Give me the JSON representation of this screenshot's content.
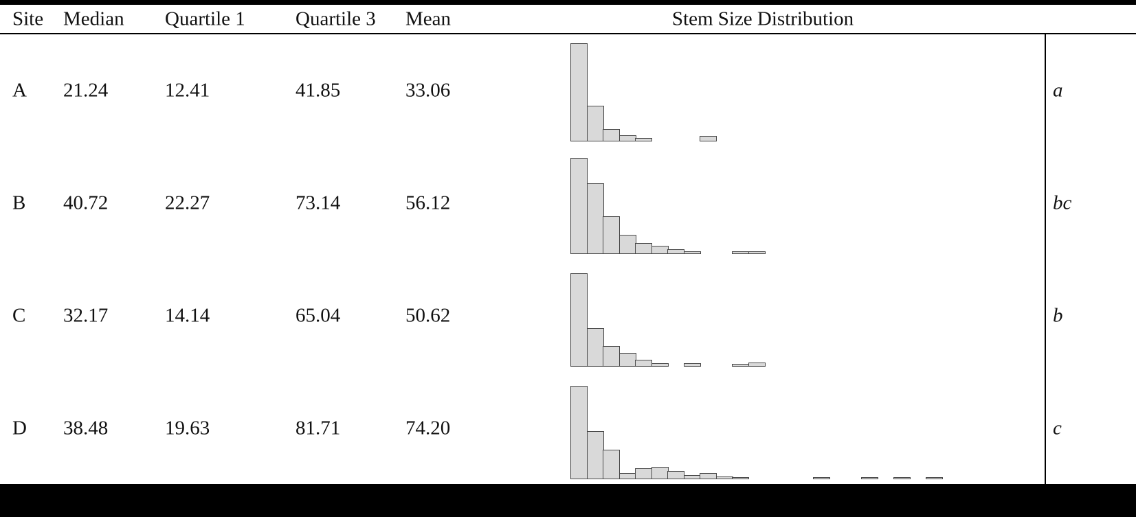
{
  "header": {
    "site": "Site",
    "median": "Median",
    "q1": "Quartile 1",
    "q3": "Quartile 3",
    "mean": "Mean",
    "dist": "Stem Size Distribution"
  },
  "rows": [
    {
      "site": "A",
      "median": "21.24",
      "q1": "12.41",
      "q3": "41.85",
      "mean": "33.06",
      "sig": "a",
      "hist": [
        143,
        52,
        18,
        9,
        5,
        0,
        0,
        0,
        8
      ]
    },
    {
      "site": "B",
      "median": "40.72",
      "q1": "22.27",
      "q3": "73.14",
      "mean": "56.12",
      "sig": "bc",
      "hist": [
        140,
        103,
        55,
        28,
        16,
        12,
        7,
        4,
        0,
        0,
        4,
        4
      ]
    },
    {
      "site": "C",
      "median": "32.17",
      "q1": "14.14",
      "q3": "65.04",
      "mean": "50.62",
      "sig": "b",
      "hist": [
        136,
        56,
        30,
        20,
        10,
        5,
        0,
        5,
        0,
        0,
        4,
        6
      ]
    },
    {
      "site": "D",
      "median": "38.48",
      "q1": "19.63",
      "q3": "81.71",
      "mean": "74.20",
      "sig": "c",
      "hist": [
        136,
        70,
        43,
        9,
        16,
        18,
        12,
        6,
        9,
        4,
        3,
        0,
        0,
        0,
        0,
        3,
        0,
        0,
        3,
        0,
        3,
        0,
        3
      ]
    }
  ],
  "colors": {
    "bar_fill": "#d9d9d9",
    "bar_border": "#474747",
    "rule": "#000000",
    "background": "#ffffff"
  },
  "chart_data": {
    "type": "table",
    "columns": [
      "Site",
      "Median",
      "Quartile 1",
      "Quartile 3",
      "Mean",
      "Stem Size Distribution",
      "significance_group"
    ],
    "rows": [
      {
        "site": "A",
        "median": 21.24,
        "quartile_1": 12.41,
        "quartile_3": 41.85,
        "mean": 33.06,
        "significance_group": "a",
        "stem_size_histogram_relative": [
          1.0,
          0.36,
          0.13,
          0.06,
          0.03,
          0,
          0,
          0,
          0.06
        ]
      },
      {
        "site": "B",
        "median": 40.72,
        "quartile_1": 22.27,
        "quartile_3": 73.14,
        "mean": 56.12,
        "significance_group": "bc",
        "stem_size_histogram_relative": [
          1.0,
          0.74,
          0.39,
          0.2,
          0.11,
          0.09,
          0.05,
          0.03,
          0,
          0,
          0.03,
          0.03
        ]
      },
      {
        "site": "C",
        "median": 32.17,
        "quartile_1": 14.14,
        "quartile_3": 65.04,
        "mean": 50.62,
        "significance_group": "b",
        "stem_size_histogram_relative": [
          1.0,
          0.41,
          0.22,
          0.15,
          0.07,
          0.04,
          0,
          0.04,
          0,
          0,
          0.03,
          0.04
        ]
      },
      {
        "site": "D",
        "median": 38.48,
        "quartile_1": 19.63,
        "quartile_3": 81.71,
        "mean": 74.2,
        "significance_group": "c",
        "stem_size_histogram_relative": [
          1.0,
          0.51,
          0.32,
          0.07,
          0.12,
          0.13,
          0.09,
          0.04,
          0.07,
          0.03,
          0.02,
          0,
          0,
          0,
          0,
          0.02,
          0,
          0,
          0.02,
          0,
          0.02,
          0,
          0.02
        ]
      }
    ],
    "histogram_type": "bar",
    "legend_position": "none",
    "grid": false
  }
}
